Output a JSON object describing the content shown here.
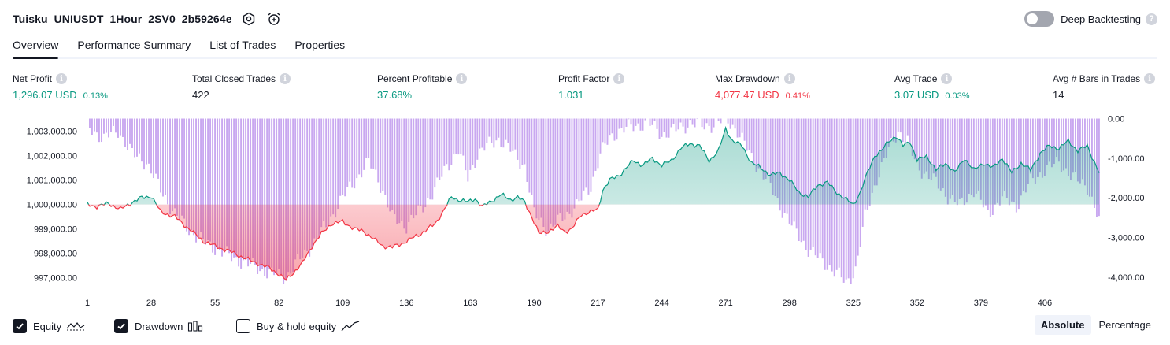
{
  "header": {
    "title": "Tuisku_UNIUSDT_1Hour_2SV0_2b59264e",
    "settings_icon": "settings-gear-icon",
    "alert_icon": "alarm-clock-plus-icon",
    "deep_backtesting_label": "Deep Backtesting",
    "deep_backtesting_enabled": false,
    "help_glyph": "?"
  },
  "tabs": [
    {
      "label": "Overview",
      "active": true
    },
    {
      "label": "Performance Summary",
      "active": false
    },
    {
      "label": "List of Trades",
      "active": false
    },
    {
      "label": "Properties",
      "active": false
    }
  ],
  "stats": [
    {
      "label": "Net Profit",
      "value": "1,296.07 USD",
      "pct": "0.13%",
      "color": "green"
    },
    {
      "label": "Total Closed Trades",
      "value": "422",
      "pct": "",
      "color": "dark"
    },
    {
      "label": "Percent Profitable",
      "value": "37.68%",
      "pct": "",
      "color": "green"
    },
    {
      "label": "Profit Factor",
      "value": "1.031",
      "pct": "",
      "color": "green"
    },
    {
      "label": "Max Drawdown",
      "value": "4,077.47 USD",
      "pct": "0.41%",
      "color": "red"
    },
    {
      "label": "Avg Trade",
      "value": "3.07 USD",
      "pct": "0.03%",
      "color": "green"
    },
    {
      "label": "Avg # Bars in Trades",
      "value": "14",
      "pct": "",
      "color": "dark"
    }
  ],
  "info_glyph": "i",
  "legend": {
    "equity_label": "Equity",
    "equity_checked": true,
    "drawdown_label": "Drawdown",
    "drawdown_checked": true,
    "buyhold_label": "Buy & hold equity",
    "buyhold_checked": false
  },
  "mode": {
    "absolute_label": "Absolute",
    "percentage_label": "Percentage",
    "active": "Absolute"
  },
  "colors": {
    "profit": "#089981",
    "loss": "#f23645",
    "drawdown": "#c9a8f0",
    "text": "#131722"
  },
  "chart_data": {
    "type": "area",
    "title": "",
    "baseline": 1000000,
    "x_ticks": [
      1,
      28,
      55,
      82,
      109,
      136,
      163,
      190,
      217,
      244,
      271,
      298,
      325,
      352,
      379,
      406
    ],
    "x_range": [
      1,
      429
    ],
    "left_axis": {
      "ticks": [
        1003000,
        1002000,
        1001000,
        1000000,
        999000,
        998000,
        997000
      ],
      "tick_labels": [
        "1,003,000.00",
        "1,002,000.00",
        "1,001,000.00",
        "1,000,000.00",
        "999,000.00",
        "998,000.00",
        "997,000.00"
      ],
      "range": [
        996700,
        1003600
      ]
    },
    "right_axis": {
      "ticks": [
        0,
        -1000,
        -2000,
        -3000,
        -4000
      ],
      "tick_labels": [
        "0.00",
        "-1,000.00",
        "-2,000.00",
        "-3,000.00",
        "-4,000.00"
      ],
      "range": [
        -4200,
        50
      ]
    },
    "equity_anchors": [
      [
        1,
        1000000
      ],
      [
        5,
        999920
      ],
      [
        10,
        1000050
      ],
      [
        15,
        999800
      ],
      [
        20,
        1000100
      ],
      [
        24,
        1000280
      ],
      [
        28,
        1000350
      ],
      [
        32,
        999700
      ],
      [
        38,
        999500
      ],
      [
        44,
        999000
      ],
      [
        50,
        998500
      ],
      [
        55,
        998300
      ],
      [
        62,
        998050
      ],
      [
        70,
        997700
      ],
      [
        78,
        997400
      ],
      [
        82,
        997150
      ],
      [
        85,
        996900
      ],
      [
        88,
        997200
      ],
      [
        92,
        997600
      ],
      [
        96,
        998300
      ],
      [
        100,
        998800
      ],
      [
        104,
        999200
      ],
      [
        109,
        999300
      ],
      [
        114,
        999000
      ],
      [
        118,
        998900
      ],
      [
        122,
        998600
      ],
      [
        126,
        998300
      ],
      [
        130,
        998250
      ],
      [
        134,
        998400
      ],
      [
        138,
        998600
      ],
      [
        142,
        998800
      ],
      [
        148,
        999200
      ],
      [
        152,
        999800
      ],
      [
        155,
        1000300
      ],
      [
        158,
        1000200
      ],
      [
        162,
        1000100
      ],
      [
        165,
        1000250
      ],
      [
        168,
        999900
      ],
      [
        172,
        1000150
      ],
      [
        176,
        1000400
      ],
      [
        180,
        1000200
      ],
      [
        183,
        1000300
      ],
      [
        186,
        1000100
      ],
      [
        189,
        999500
      ],
      [
        192,
        998800
      ],
      [
        196,
        998900
      ],
      [
        200,
        999100
      ],
      [
        203,
        998900
      ],
      [
        206,
        999000
      ],
      [
        210,
        999600
      ],
      [
        214,
        999700
      ],
      [
        217,
        999800
      ],
      [
        219,
        1000600
      ],
      [
        222,
        1001000
      ],
      [
        226,
        1001200
      ],
      [
        232,
        1001800
      ],
      [
        236,
        1001600
      ],
      [
        240,
        1001900
      ],
      [
        244,
        1001600
      ],
      [
        248,
        1001800
      ],
      [
        252,
        1002300
      ],
      [
        256,
        1002500
      ],
      [
        260,
        1002400
      ],
      [
        264,
        1001800
      ],
      [
        268,
        1002200
      ],
      [
        271,
        1003100
      ],
      [
        274,
        1002600
      ],
      [
        278,
        1002400
      ],
      [
        282,
        1001700
      ],
      [
        286,
        1001500
      ],
      [
        290,
        1001200
      ],
      [
        294,
        1001300
      ],
      [
        298,
        1001000
      ],
      [
        302,
        1000500
      ],
      [
        306,
        1000300
      ],
      [
        310,
        1000800
      ],
      [
        314,
        1000900
      ],
      [
        318,
        1000500
      ],
      [
        322,
        1000200
      ],
      [
        325,
        1000000
      ],
      [
        328,
        1000500
      ],
      [
        331,
        1001300
      ],
      [
        334,
        1002000
      ],
      [
        337,
        1002200
      ],
      [
        340,
        1002600
      ],
      [
        343,
        1002800
      ],
      [
        346,
        1002400
      ],
      [
        349,
        1002600
      ],
      [
        352,
        1001800
      ],
      [
        356,
        1002000
      ],
      [
        360,
        1001400
      ],
      [
        364,
        1001700
      ],
      [
        368,
        1001300
      ],
      [
        372,
        1001900
      ],
      [
        376,
        1001400
      ],
      [
        380,
        1001700
      ],
      [
        384,
        1001500
      ],
      [
        388,
        1001900
      ],
      [
        392,
        1001300
      ],
      [
        396,
        1001700
      ],
      [
        400,
        1001400
      ],
      [
        404,
        1002100
      ],
      [
        408,
        1002400
      ],
      [
        412,
        1002300
      ],
      [
        416,
        1002600
      ],
      [
        420,
        1002200
      ],
      [
        424,
        1002400
      ],
      [
        429,
        1001300
      ]
    ],
    "drawdown_anchors": [
      [
        1,
        -200
      ],
      [
        8,
        -500
      ],
      [
        14,
        -300
      ],
      [
        20,
        -900
      ],
      [
        26,
        -1100
      ],
      [
        32,
        -1800
      ],
      [
        38,
        -2400
      ],
      [
        44,
        -2800
      ],
      [
        50,
        -3100
      ],
      [
        56,
        -3300
      ],
      [
        62,
        -3500
      ],
      [
        70,
        -3700
      ],
      [
        78,
        -3900
      ],
      [
        85,
        -4000
      ],
      [
        90,
        -3600
      ],
      [
        96,
        -3200
      ],
      [
        102,
        -2700
      ],
      [
        109,
        -2000
      ],
      [
        115,
        -1500
      ],
      [
        120,
        -1100
      ],
      [
        124,
        -1500
      ],
      [
        130,
        -2500
      ],
      [
        136,
        -2700
      ],
      [
        142,
        -2300
      ],
      [
        148,
        -1800
      ],
      [
        153,
        -1200
      ],
      [
        158,
        -800
      ],
      [
        162,
        -1500
      ],
      [
        166,
        -900
      ],
      [
        170,
        -700
      ],
      [
        175,
        -500
      ],
      [
        180,
        -800
      ],
      [
        186,
        -1200
      ],
      [
        190,
        -2400
      ],
      [
        196,
        -2800
      ],
      [
        202,
        -2500
      ],
      [
        208,
        -2200
      ],
      [
        214,
        -1700
      ],
      [
        218,
        -900
      ],
      [
        222,
        -500
      ],
      [
        226,
        -300
      ],
      [
        232,
        -200
      ],
      [
        238,
        -100
      ],
      [
        244,
        -400
      ],
      [
        250,
        -300
      ],
      [
        256,
        -100
      ],
      [
        262,
        -200
      ],
      [
        268,
        -100
      ],
      [
        271,
        0
      ],
      [
        276,
        -300
      ],
      [
        282,
        -1000
      ],
      [
        288,
        -1500
      ],
      [
        294,
        -2200
      ],
      [
        300,
        -2800
      ],
      [
        306,
        -3300
      ],
      [
        312,
        -3600
      ],
      [
        318,
        -3900
      ],
      [
        322,
        -4150
      ],
      [
        326,
        -3800
      ],
      [
        330,
        -2500
      ],
      [
        335,
        -1500
      ],
      [
        340,
        -800
      ],
      [
        344,
        -300
      ],
      [
        348,
        -600
      ],
      [
        352,
        -1200
      ],
      [
        358,
        -1500
      ],
      [
        364,
        -1900
      ],
      [
        370,
        -2200
      ],
      [
        376,
        -1800
      ],
      [
        382,
        -2400
      ],
      [
        388,
        -2000
      ],
      [
        394,
        -2200
      ],
      [
        400,
        -1600
      ],
      [
        406,
        -1300
      ],
      [
        412,
        -1100
      ],
      [
        418,
        -1500
      ],
      [
        424,
        -1700
      ],
      [
        429,
        -2600
      ]
    ]
  }
}
